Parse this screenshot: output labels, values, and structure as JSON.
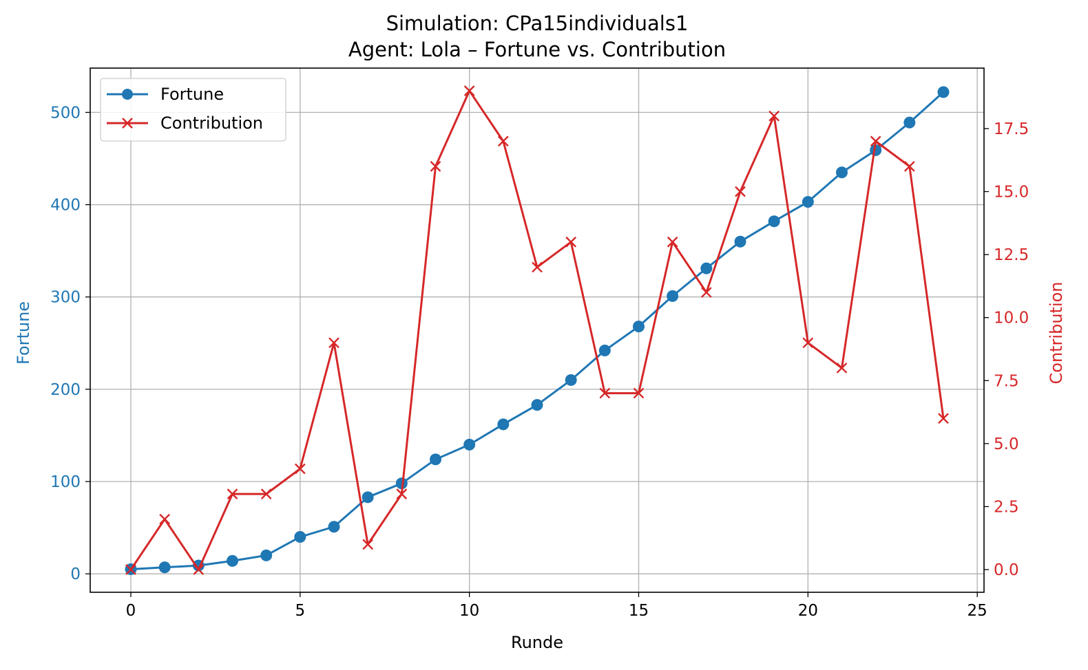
{
  "chart_data": {
    "type": "line",
    "title": "Simulation: CPa15individuals1",
    "subtitle": "Agent: Lola – Fortune vs. Contribution",
    "xlabel": "Runde",
    "ylabel_left": "Fortune",
    "ylabel_right": "Contribution",
    "xlim": [
      -1.2,
      25.2
    ],
    "ylim_left": [
      -20,
      548
    ],
    "ylim_right": [
      -0.9,
      19.9
    ],
    "x_ticks": [
      "0",
      "5",
      "10",
      "15",
      "20",
      "25"
    ],
    "y_ticks_left": [
      "0",
      "100",
      "200",
      "300",
      "400",
      "500"
    ],
    "y_ticks_right": [
      "0.0",
      "2.5",
      "5.0",
      "7.5",
      "10.0",
      "12.5",
      "15.0",
      "17.5"
    ],
    "grid": true,
    "legend_position": "upper-left",
    "colors": {
      "fortune": "#1f77b4",
      "contribution": "#d62728"
    },
    "x": [
      0,
      1,
      2,
      3,
      4,
      5,
      6,
      7,
      8,
      9,
      10,
      11,
      12,
      13,
      14,
      15,
      16,
      17,
      18,
      19,
      20,
      21,
      22,
      23,
      24
    ],
    "series": [
      {
        "name": "Fortune",
        "axis": "left",
        "marker": "circle",
        "values": [
          5,
          7,
          9,
          14,
          20,
          40,
          51,
          83,
          98,
          124,
          140,
          162,
          183,
          210,
          242,
          268,
          301,
          331,
          360,
          382,
          403,
          435,
          459,
          489,
          522
        ]
      },
      {
        "name": "Contribution",
        "axis": "right",
        "marker": "x",
        "values": [
          0,
          2,
          0,
          3,
          3,
          4,
          9,
          1,
          3,
          16,
          19,
          17,
          12,
          13,
          7,
          7,
          13,
          11,
          15,
          18,
          9,
          8,
          17,
          16,
          6
        ]
      }
    ]
  }
}
